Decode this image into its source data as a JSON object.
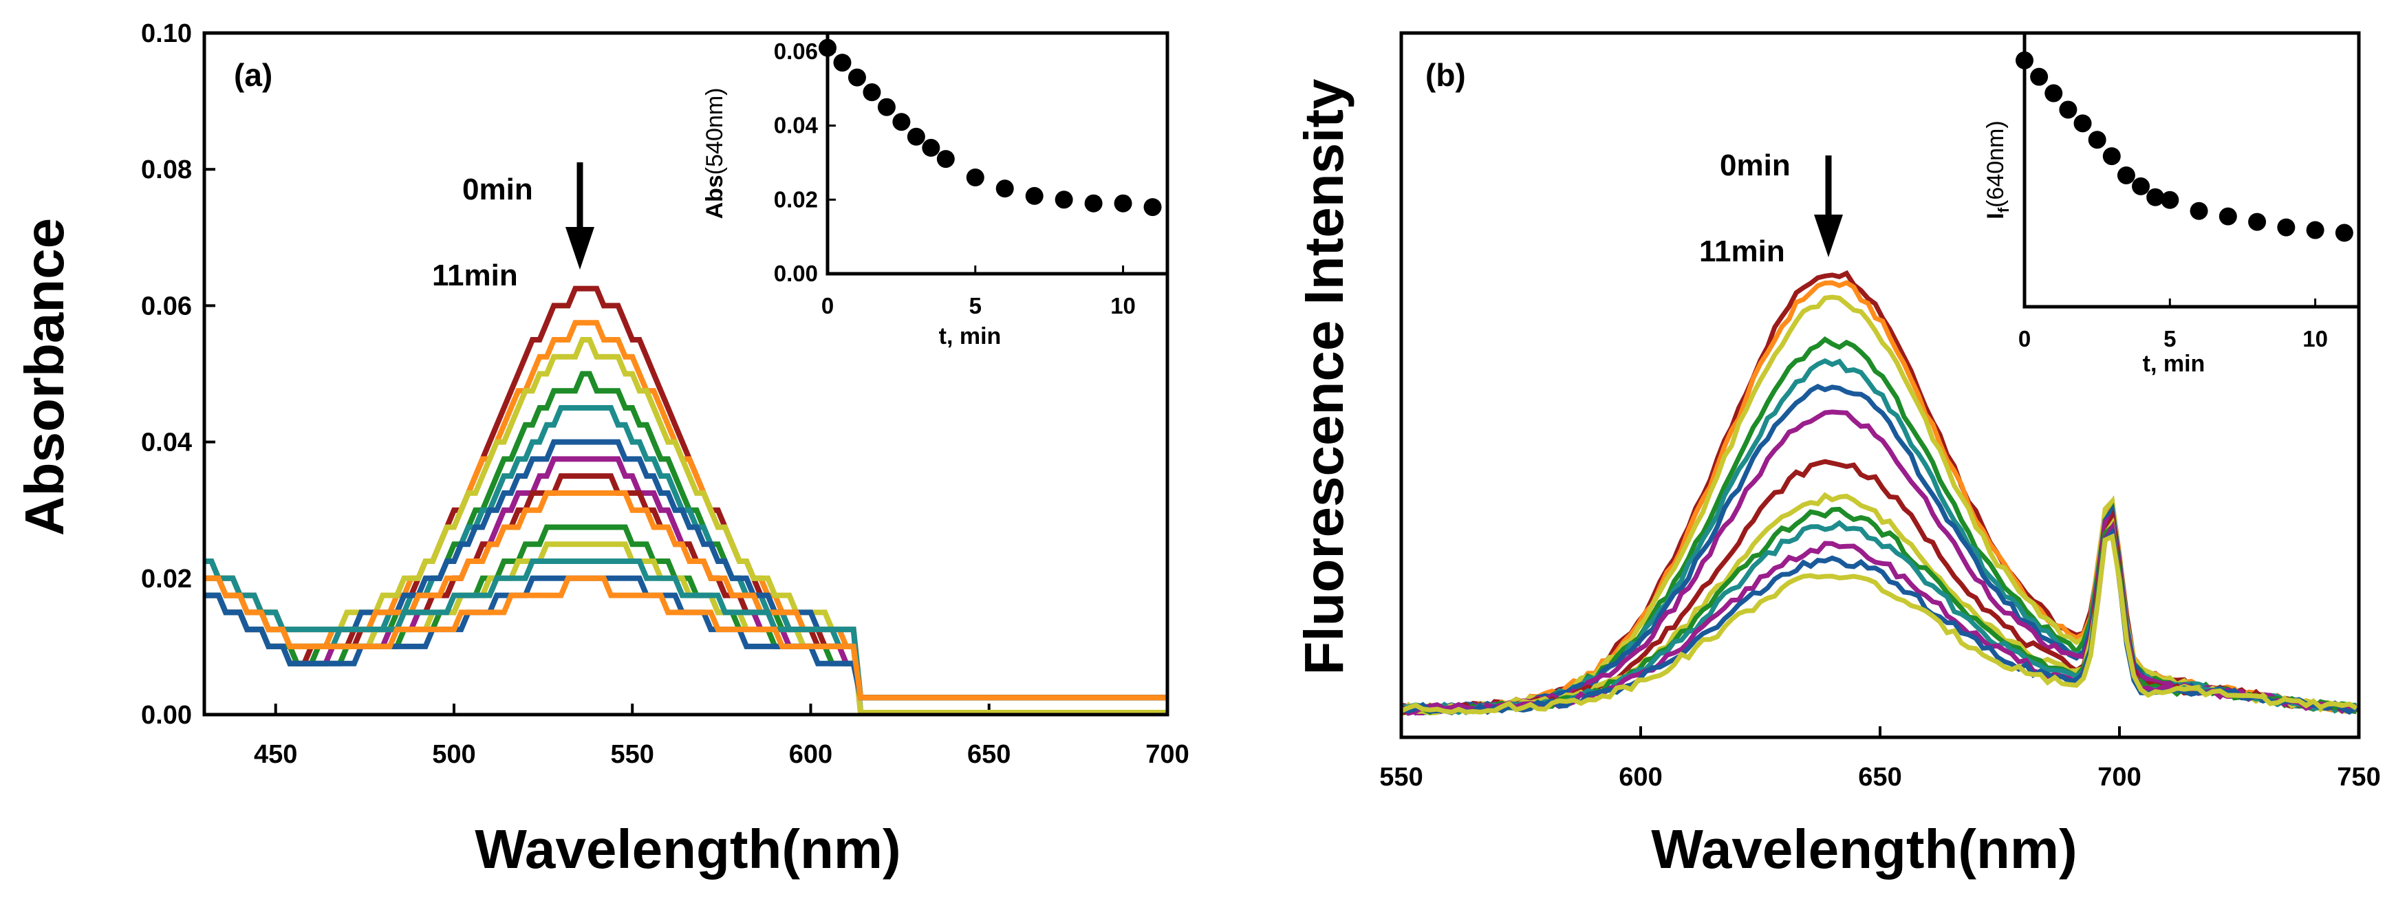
{
  "chart_data": [
    {
      "id": "a",
      "type": "line",
      "panel_label": "(a)",
      "xlabel": "Wavelength(nm)",
      "ylabel": "Absorbance",
      "xlim": [
        430,
        700
      ],
      "ylim": [
        0,
        0.1
      ],
      "xticks": [
        450,
        500,
        550,
        600,
        650,
        700
      ],
      "yticks": [
        0.0,
        0.02,
        0.04,
        0.06,
        0.08,
        0.1
      ],
      "ytick_labels": [
        "0.00",
        "0.02",
        "0.04",
        "0.06",
        "0.08",
        "0.10"
      ],
      "annotations": {
        "start": "0min",
        "end": "11min"
      },
      "arrow_at_x": 535,
      "peak_x": 537,
      "peak_values": [
        0.062,
        0.057,
        0.054,
        0.049,
        0.045,
        0.041,
        0.038,
        0.035,
        0.033,
        0.028,
        0.025,
        0.023,
        0.021,
        0.019
      ],
      "series_colors": [
        "#9B1B1B",
        "#FF8C1A",
        "#C8C832",
        "#1E8C28",
        "#1E8C8C",
        "#1A5A9A",
        "#9A1E8C",
        "#9B1B1B",
        "#FF8C1A",
        "#1E8C28",
        "#C8C832",
        "#1E8C8C",
        "#1A5A9A",
        "#FF8C1A"
      ],
      "inset": {
        "type": "scatter",
        "xlabel": "t, min",
        "ylabel": "Abs(540nm)",
        "xlim": [
          0,
          11.5
        ],
        "ylim": [
          0,
          0.065
        ],
        "xticks": [
          0,
          5,
          10
        ],
        "yticks": [
          0.0,
          0.02,
          0.04,
          0.06
        ],
        "ytick_labels": [
          "0.00",
          "0.02",
          "0.04",
          "0.06"
        ],
        "x": [
          0,
          0.5,
          1,
          1.5,
          2,
          2.5,
          3,
          3.5,
          4,
          5,
          6,
          7,
          8,
          9,
          10,
          11
        ],
        "y": [
          0.061,
          0.057,
          0.053,
          0.049,
          0.045,
          0.041,
          0.037,
          0.034,
          0.031,
          0.026,
          0.023,
          0.021,
          0.02,
          0.019,
          0.019,
          0.018
        ],
        "marker_color": "#000000"
      }
    },
    {
      "id": "b",
      "type": "line",
      "panel_label": "(b)",
      "xlabel": "Wavelength(nm)",
      "ylabel": "Fluorescence Intensity",
      "xlim": [
        550,
        750
      ],
      "ylim": [
        0,
        1
      ],
      "xticks": [
        550,
        600,
        650,
        700,
        750
      ],
      "y_tick_labels_shown": false,
      "annotations": {
        "start": "0min",
        "end": "11min"
      },
      "arrow_at_x": 640,
      "peak_x": 640,
      "peak_values": [
        0.66,
        0.645,
        0.62,
        0.56,
        0.53,
        0.5,
        0.46,
        0.39,
        0.34,
        0.32,
        0.3,
        0.27,
        0.25,
        0.23
      ],
      "series_colors": [
        "#9B1B1B",
        "#FF8C1A",
        "#C8C832",
        "#1E8C28",
        "#1E8C8C",
        "#1A5A9A",
        "#9A1E8C",
        "#9B1B1B",
        "#C8C832",
        "#1E8C28",
        "#1E8C8C",
        "#9A1E8C",
        "#1A5A9A",
        "#C8C832"
      ],
      "inset": {
        "type": "scatter",
        "xlabel": "t, min",
        "ylabel": "If(640nm)",
        "xlim": [
          0,
          11.5
        ],
        "ylim": [
          0,
          1
        ],
        "xticks": [
          0,
          5,
          10
        ],
        "y_tick_labels_shown": false,
        "x": [
          0,
          0.5,
          1,
          1.5,
          2,
          2.5,
          3,
          3.5,
          4,
          4.5,
          5,
          6,
          7,
          8,
          9,
          10,
          11
        ],
        "y": [
          0.9,
          0.84,
          0.78,
          0.72,
          0.67,
          0.61,
          0.55,
          0.48,
          0.44,
          0.4,
          0.39,
          0.35,
          0.33,
          0.31,
          0.29,
          0.28,
          0.27
        ],
        "marker_color": "#000000"
      }
    }
  ]
}
